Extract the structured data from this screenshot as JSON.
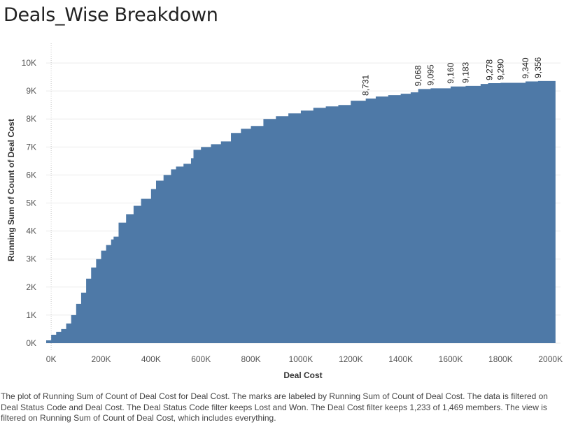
{
  "page": {
    "title": "Deals_Wise Breakdown",
    "caption": "The plot of Running Sum of Count of Deal Cost for Deal Cost.  The marks are labeled by Running Sum of Count of Deal Cost. The data is filtered on Deal Status Code and Deal Cost. The Deal Status Code filter keeps Lost and Won. The Deal Cost filter keeps 1,233 of 1,469 members. The view is filtered on Running Sum of Count of Deal Cost, which includes everything."
  },
  "colors": {
    "area": "#4e79a7",
    "grid": "#ebebeb",
    "zero_line": "#c8c8c8"
  },
  "chart_data": {
    "type": "area",
    "title": "Deals_Wise Breakdown",
    "xlabel": "Deal Cost",
    "ylabel": "Running Sum of Count of Deal Cost",
    "xlim": [
      -20000,
      2040000
    ],
    "ylim": [
      -300,
      10700
    ],
    "x_ticks": [
      0,
      200000,
      400000,
      600000,
      800000,
      1000000,
      1200000,
      1400000,
      1600000,
      1800000,
      2000000
    ],
    "x_tick_labels": [
      "0K",
      "200K",
      "400K",
      "600K",
      "800K",
      "1000K",
      "1200K",
      "1400K",
      "1600K",
      "1800K",
      "2000K"
    ],
    "y_ticks": [
      0,
      1000,
      2000,
      3000,
      4000,
      5000,
      6000,
      7000,
      8000,
      9000,
      10000
    ],
    "y_tick_labels": [
      "0K",
      "1K",
      "2K",
      "3K",
      "4K",
      "5K",
      "6K",
      "7K",
      "8K",
      "9K",
      "10K"
    ],
    "grid": true,
    "points": [
      [
        -20000,
        100
      ],
      [
        0,
        300
      ],
      [
        20000,
        400
      ],
      [
        40000,
        500
      ],
      [
        60000,
        700
      ],
      [
        80000,
        1000
      ],
      [
        100000,
        1400
      ],
      [
        120000,
        1800
      ],
      [
        140000,
        2300
      ],
      [
        160000,
        2700
      ],
      [
        180000,
        3000
      ],
      [
        200000,
        3300
      ],
      [
        220000,
        3500
      ],
      [
        240000,
        3700
      ],
      [
        250000,
        3800
      ],
      [
        270000,
        4300
      ],
      [
        300000,
        4600
      ],
      [
        330000,
        4900
      ],
      [
        360000,
        5150
      ],
      [
        400000,
        5500
      ],
      [
        420000,
        5800
      ],
      [
        450000,
        6000
      ],
      [
        480000,
        6200
      ],
      [
        500000,
        6300
      ],
      [
        530000,
        6400
      ],
      [
        560000,
        6600
      ],
      [
        570000,
        6900
      ],
      [
        600000,
        7000
      ],
      [
        640000,
        7100
      ],
      [
        680000,
        7200
      ],
      [
        720000,
        7500
      ],
      [
        760000,
        7650
      ],
      [
        800000,
        7750
      ],
      [
        850000,
        8000
      ],
      [
        900000,
        8100
      ],
      [
        950000,
        8200
      ],
      [
        1000000,
        8300
      ],
      [
        1050000,
        8400
      ],
      [
        1100000,
        8450
      ],
      [
        1150000,
        8500
      ],
      [
        1200000,
        8650
      ],
      [
        1260000,
        8731
      ],
      [
        1300000,
        8800
      ],
      [
        1350000,
        8850
      ],
      [
        1400000,
        8900
      ],
      [
        1440000,
        8950
      ],
      [
        1470000,
        9068
      ],
      [
        1520000,
        9095
      ],
      [
        1600000,
        9160
      ],
      [
        1660000,
        9183
      ],
      [
        1720000,
        9250
      ],
      [
        1750000,
        9278
      ],
      [
        1800000,
        9290
      ],
      [
        1900000,
        9340
      ],
      [
        1950000,
        9356
      ],
      [
        2020000,
        9356
      ]
    ],
    "data_labels": [
      {
        "x": 1260000,
        "y": 8731,
        "label": "8,731"
      },
      {
        "x": 1470000,
        "y": 9068,
        "label": "9,068"
      },
      {
        "x": 1520000,
        "y": 9095,
        "label": "9,095"
      },
      {
        "x": 1600000,
        "y": 9160,
        "label": "9,160"
      },
      {
        "x": 1660000,
        "y": 9183,
        "label": "9,183"
      },
      {
        "x": 1755000,
        "y": 9278,
        "label": "9,278"
      },
      {
        "x": 1800000,
        "y": 9290,
        "label": "9,290"
      },
      {
        "x": 1900000,
        "y": 9340,
        "label": "9,340"
      },
      {
        "x": 1950000,
        "y": 9356,
        "label": "9,356"
      }
    ]
  }
}
